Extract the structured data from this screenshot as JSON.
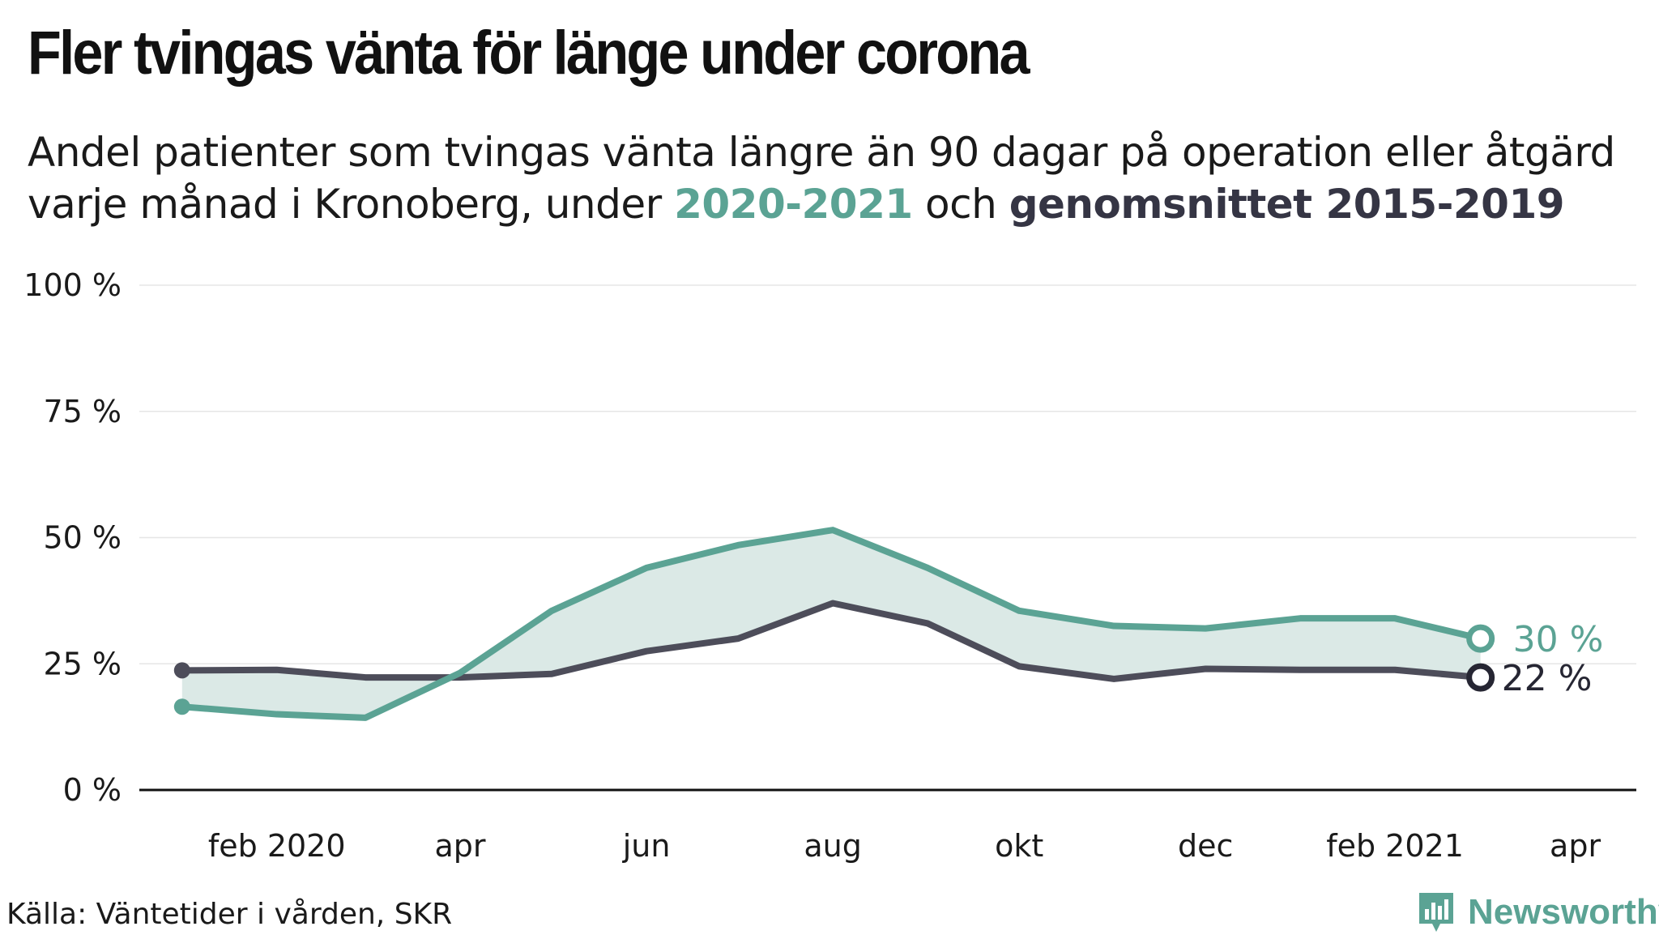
{
  "header": {
    "title": "Fler tvingas vänta för länge under corona",
    "subtitle_pre": "Andel patienter som tvingas vänta längre än 90 dagar på operation eller åtgärd varje månad i Kronoberg, under ",
    "subtitle_series1": "2020-2021",
    "subtitle_mid": " och ",
    "subtitle_series2": "genomsnittet 2015-2019"
  },
  "colors": {
    "series_2020_2021": "#5ba394",
    "series_avg": "#4d4d5a",
    "band_fill": "#dbe9e6",
    "grid": "#e6e6e6",
    "axis": "#111111"
  },
  "chart_data": {
    "type": "line",
    "x": [
      "2020-01",
      "2020-02",
      "2020-03",
      "2020-04",
      "2020-05",
      "2020-06",
      "2020-07",
      "2020-08",
      "2020-09",
      "2020-10",
      "2020-11",
      "2020-12",
      "2021-01",
      "2021-02",
      "2021-03"
    ],
    "series": [
      {
        "name": "2020-2021",
        "values": [
          16.5,
          15,
          14.3,
          23.2,
          35.5,
          44,
          48.5,
          51.5,
          44,
          35.5,
          32.5,
          32,
          34,
          34,
          30
        ]
      },
      {
        "name": "genomsnittet 2015-2019",
        "values": [
          23.7,
          23.8,
          22.3,
          22.3,
          23,
          27.5,
          30,
          37,
          33,
          24.5,
          22,
          24,
          23.8,
          23.8,
          22.3
        ]
      }
    ],
    "ylim": [
      0,
      100
    ],
    "y_ticks": [
      0,
      25,
      50,
      75,
      100
    ],
    "y_tick_labels": [
      "0 %",
      "25 %",
      "50 %",
      "75 %",
      "100 %"
    ],
    "x_ticks": [
      {
        "x": "2020-02",
        "label": "feb 2020"
      },
      {
        "x": "2020-04",
        "label": "apr"
      },
      {
        "x": "2020-06",
        "label": "jun"
      },
      {
        "x": "2020-08",
        "label": "aug"
      },
      {
        "x": "2020-10",
        "label": "okt"
      },
      {
        "x": "2020-12",
        "label": "dec"
      },
      {
        "x": "2021-02",
        "label": "feb 2021"
      },
      {
        "x": "2021-04",
        "label": "apr"
      }
    ],
    "xlim": [
      "2019-12-18",
      "2021-04-21"
    ],
    "end_labels": [
      "30 %",
      "22 %"
    ],
    "grid": true,
    "legend": "none"
  },
  "footer": {
    "source": "Källa: Väntetider i vården, SKR",
    "brand": "Newsworthy",
    "brand_icon": "newsworthy-logo-icon"
  }
}
